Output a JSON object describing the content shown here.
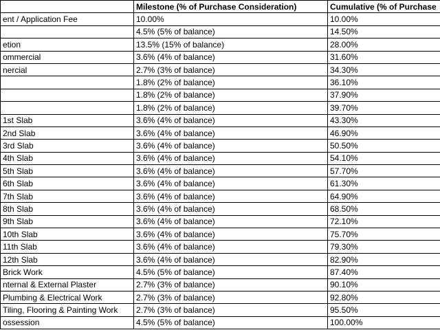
{
  "table": {
    "header": [
      null,
      "Milestone (% of Purchase Consideration)",
      "Cumulative (% of Purchase"
    ],
    "rows": [
      [
        "ent / Application Fee",
        "10.00%",
        "10.00%"
      ],
      [
        null,
        "4.5% (5% of balance)",
        "14.50%"
      ],
      [
        "etion",
        "13.5% (15% of balance)",
        "28.00%"
      ],
      [
        "ommercial",
        "3.6% (4% of balance)",
        "31.60%"
      ],
      [
        "nercial",
        "2.7% (3% of balance)",
        "34.30%"
      ],
      [
        null,
        "1.8% (2% of balance)",
        "36.10%"
      ],
      [
        null,
        "1.8% (2% of balance)",
        "37.90%"
      ],
      [
        null,
        "1.8% (2% of balance)",
        "39.70%"
      ],
      [
        "1st Slab",
        "3.6% (4% of balance)",
        "43.30%"
      ],
      [
        "2nd Slab",
        "3.6% (4% of balance)",
        "46.90%"
      ],
      [
        "3rd Slab",
        "3.6% (4% of balance)",
        "50.50%"
      ],
      [
        "4th Slab",
        "3.6% (4% of balance)",
        "54.10%"
      ],
      [
        "5th Slab",
        "3.6% (4% of balance)",
        "57.70%"
      ],
      [
        "6th Slab",
        "3.6% (4% of balance)",
        "61.30%"
      ],
      [
        "7th Slab",
        "3.6% (4% of balance)",
        "64.90%"
      ],
      [
        "8th Slab",
        "3.6% (4% of balance)",
        "68.50%"
      ],
      [
        "9th Slab",
        "3.6% (4% of balance)",
        "72.10%"
      ],
      [
        "10th Slab",
        "3.6% (4% of balance)",
        "75.70%"
      ],
      [
        "11th Slab",
        "3.6% (4% of balance)",
        "79.30%"
      ],
      [
        "12th Slab",
        "3.6% (4% of balance)",
        "82.90%"
      ],
      [
        "Brick Work",
        "4.5% (5% of balance)",
        "87.40%"
      ],
      [
        "nternal & External Plaster",
        "2.7% (3% of balance)",
        "90.10%"
      ],
      [
        "Plumbing & Electrical Work",
        "2.7% (3% of balance)",
        "92.80%"
      ],
      [
        "Tiling, Flooring & Painting Work",
        "2.7% (3% of balance)",
        "95.50%"
      ],
      [
        "ossession",
        "4.5% (5% of balance)",
        "100.00%"
      ]
    ]
  }
}
